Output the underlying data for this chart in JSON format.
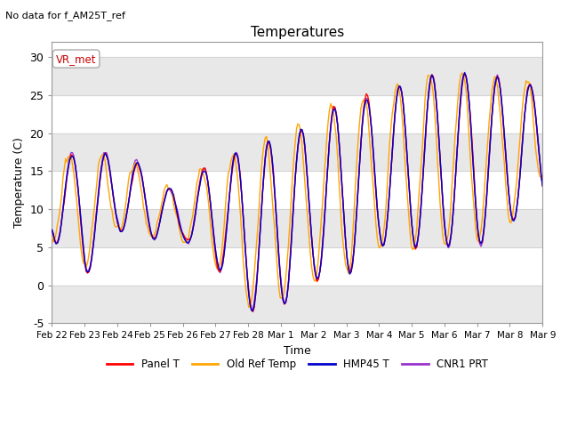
{
  "title": "Temperatures",
  "subtitle": "No data for f_AM25T_ref",
  "xlabel": "Time",
  "ylabel": "Temperature (C)",
  "ylim": [
    -5,
    32
  ],
  "yticks": [
    -5,
    0,
    5,
    10,
    15,
    20,
    25,
    30
  ],
  "xtick_labels": [
    "Feb 22",
    "Feb 23",
    "Feb 24",
    "Feb 25",
    "Feb 26",
    "Feb 27",
    "Feb 28",
    "Mar 1",
    "Mar 2",
    "Mar 3",
    "Mar 4",
    "Mar 5",
    "Mar 6",
    "Mar 7",
    "Mar 8",
    "Mar 9"
  ],
  "legend_labels": [
    "Panel T",
    "Old Ref Temp",
    "HMP45 T",
    "CNR1 PRT"
  ],
  "legend_colors": [
    "#ff0000",
    "#ffa500",
    "#0000cc",
    "#9932cc"
  ],
  "vr_met_label": "VR_met",
  "vr_met_color": "#cc0000",
  "shading_color": "#e8e8e8",
  "panel_t_color": "#ff0000",
  "old_ref_temp_color": "#ffa500",
  "hmp45_t_color": "#0000cc",
  "cnr1_prt_color": "#9932cc",
  "figsize": [
    6.4,
    4.8
  ],
  "dpi": 100
}
